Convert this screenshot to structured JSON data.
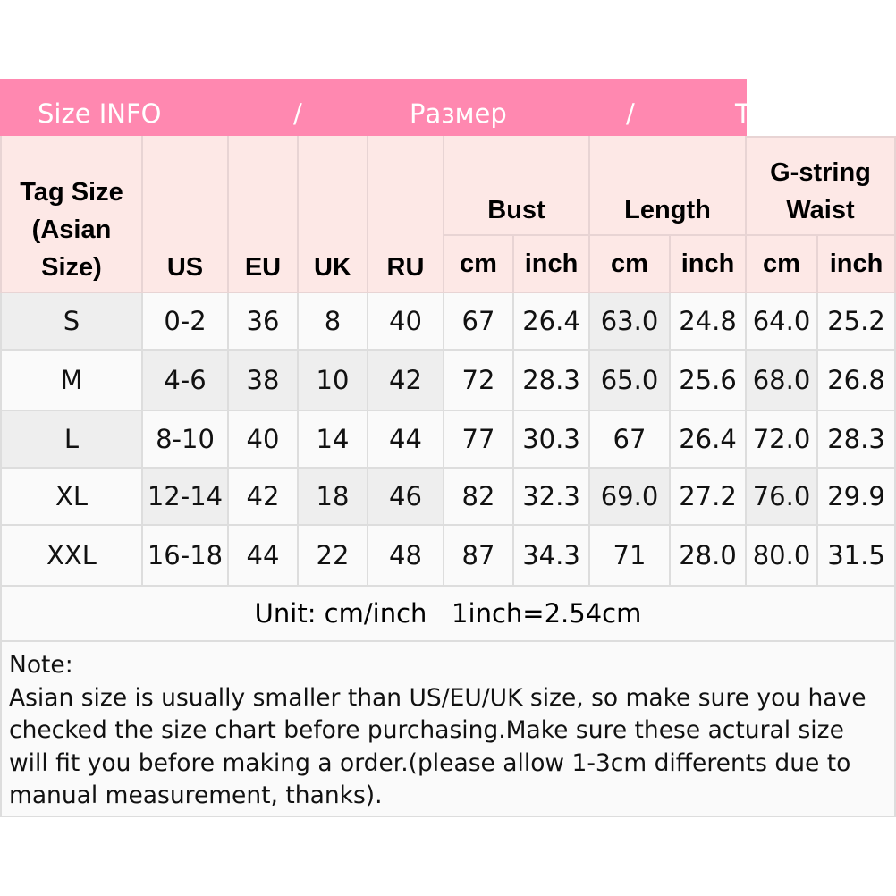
{
  "banner": {
    "part1": "Size INFO",
    "sep1": "/",
    "part2": "Размер",
    "sep2": "/",
    "part3": "T"
  },
  "headers": {
    "tag": "Tag Size (Asian Size)",
    "us": "US",
    "eu": "EU",
    "uk": "UK",
    "ru": "RU",
    "bust": "Bust",
    "length": "Length",
    "waist": "G-string Waist",
    "sub": [
      "cm",
      "inch",
      "cm",
      "inch",
      "cm",
      "inch"
    ]
  },
  "rows": [
    [
      "S",
      "0-2",
      "36",
      "8",
      "40",
      "67",
      "26.4",
      "63.0",
      "24.8",
      "64.0",
      "25.2"
    ],
    [
      "M",
      "4-6",
      "38",
      "10",
      "42",
      "72",
      "28.3",
      "65.0",
      "25.6",
      "68.0",
      "26.8"
    ],
    [
      "L",
      "8-10",
      "40",
      "14",
      "44",
      "77",
      "30.3",
      "67",
      "26.4",
      "72.0",
      "28.3"
    ],
    [
      "XL",
      "12-14",
      "42",
      "18",
      "46",
      "82",
      "32.3",
      "69.0",
      "27.2",
      "76.0",
      "29.9"
    ],
    [
      "XXL",
      "16-18",
      "44",
      "22",
      "48",
      "87",
      "34.3",
      "71",
      "28.0",
      "80.0",
      "31.5"
    ]
  ],
  "unit_text": "Unit: cm/inch   1inch=2.54cm",
  "note": {
    "title": "Note:",
    "body": "Asian size is usually smaller than US/EU/UK size, so make sure you have checked the size chart before purchasing.Make sure these actural size will fit you before making a order.(please allow 1-3cm differents due to manual measurement, thanks)."
  },
  "colors": {
    "banner": "#ff88b0",
    "header_bg": "#fde8e6"
  }
}
